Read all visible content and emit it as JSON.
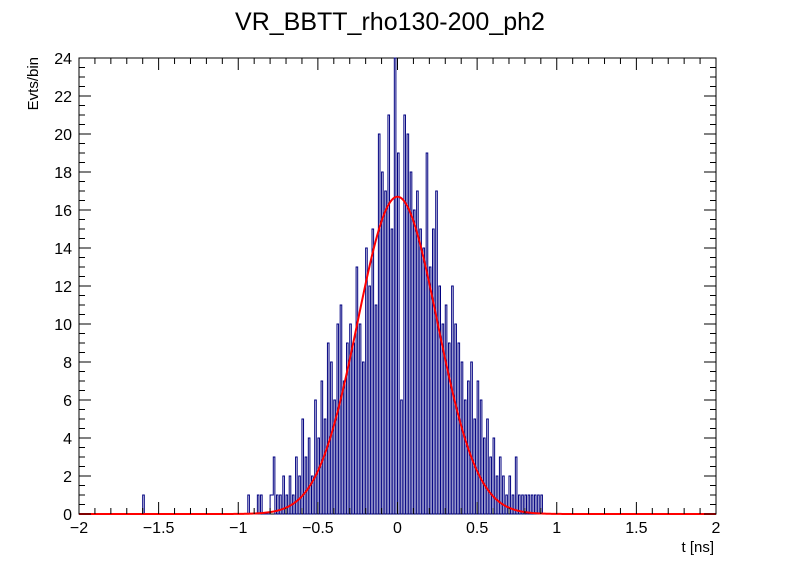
{
  "chart_data": {
    "type": "bar",
    "title": "VR_BBTT_rho130-200_ph2",
    "xlabel": "t [ns]",
    "ylabel": "Evts/bin",
    "xlim": [
      -2,
      2
    ],
    "ylim": [
      0,
      24
    ],
    "x_major_ticks": [
      -2,
      -1.5,
      -1,
      -0.5,
      0,
      0.5,
      1,
      1.5,
      2
    ],
    "x_tick_labels": [
      "−2",
      "−1.5",
      "−1",
      "−0.5",
      "0",
      "0.5",
      "1",
      "1.5",
      "2"
    ],
    "y_major_ticks": [
      0,
      2,
      4,
      6,
      8,
      10,
      12,
      14,
      16,
      18,
      20,
      22,
      24
    ],
    "y_tick_labels": [
      "0",
      "2",
      "4",
      "6",
      "8",
      "10",
      "12",
      "14",
      "16",
      "18",
      "20",
      "22",
      "24"
    ],
    "grid": false,
    "legend": "none",
    "histogram": {
      "color": "#000080",
      "bin_edges_range": [
        -2,
        2
      ],
      "nbins": 400,
      "nonzero_bins": [
        {
          "x": -1.6,
          "y": 1
        },
        {
          "x": -0.94,
          "y": 1
        },
        {
          "x": -0.88,
          "y": 1
        },
        {
          "x": -0.86,
          "y": 1
        },
        {
          "x": -0.8,
          "y": 1
        },
        {
          "x": -0.79,
          "y": 1
        },
        {
          "x": -0.78,
          "y": 3
        },
        {
          "x": -0.76,
          "y": 1
        },
        {
          "x": -0.74,
          "y": 1
        },
        {
          "x": -0.72,
          "y": 2
        },
        {
          "x": -0.7,
          "y": 1
        },
        {
          "x": -0.68,
          "y": 2
        },
        {
          "x": -0.66,
          "y": 1
        },
        {
          "x": -0.64,
          "y": 3
        },
        {
          "x": -0.62,
          "y": 2
        },
        {
          "x": -0.6,
          "y": 5
        },
        {
          "x": -0.58,
          "y": 3
        },
        {
          "x": -0.56,
          "y": 4
        },
        {
          "x": -0.54,
          "y": 2
        },
        {
          "x": -0.52,
          "y": 6
        },
        {
          "x": -0.5,
          "y": 4
        },
        {
          "x": -0.48,
          "y": 7
        },
        {
          "x": -0.46,
          "y": 5
        },
        {
          "x": -0.44,
          "y": 9
        },
        {
          "x": -0.42,
          "y": 8
        },
        {
          "x": -0.4,
          "y": 6
        },
        {
          "x": -0.38,
          "y": 10
        },
        {
          "x": -0.36,
          "y": 11
        },
        {
          "x": -0.34,
          "y": 7
        },
        {
          "x": -0.32,
          "y": 9
        },
        {
          "x": -0.3,
          "y": 10
        },
        {
          "x": -0.28,
          "y": 9
        },
        {
          "x": -0.26,
          "y": 13
        },
        {
          "x": -0.24,
          "y": 10
        },
        {
          "x": -0.22,
          "y": 8
        },
        {
          "x": -0.2,
          "y": 14
        },
        {
          "x": -0.18,
          "y": 12
        },
        {
          "x": -0.16,
          "y": 15
        },
        {
          "x": -0.14,
          "y": 11
        },
        {
          "x": -0.12,
          "y": 20
        },
        {
          "x": -0.1,
          "y": 18
        },
        {
          "x": -0.08,
          "y": 17
        },
        {
          "x": -0.06,
          "y": 21
        },
        {
          "x": -0.04,
          "y": 15
        },
        {
          "x": -0.02,
          "y": 24
        },
        {
          "x": 0.0,
          "y": 19
        },
        {
          "x": 0.02,
          "y": 6
        },
        {
          "x": 0.04,
          "y": 21
        },
        {
          "x": 0.06,
          "y": 20
        },
        {
          "x": 0.08,
          "y": 18
        },
        {
          "x": 0.1,
          "y": 16
        },
        {
          "x": 0.12,
          "y": 17
        },
        {
          "x": 0.14,
          "y": 15
        },
        {
          "x": 0.16,
          "y": 14
        },
        {
          "x": 0.18,
          "y": 19
        },
        {
          "x": 0.2,
          "y": 13
        },
        {
          "x": 0.22,
          "y": 15
        },
        {
          "x": 0.24,
          "y": 17
        },
        {
          "x": 0.26,
          "y": 12
        },
        {
          "x": 0.28,
          "y": 10
        },
        {
          "x": 0.3,
          "y": 11
        },
        {
          "x": 0.32,
          "y": 9
        },
        {
          "x": 0.34,
          "y": 12
        },
        {
          "x": 0.36,
          "y": 10
        },
        {
          "x": 0.38,
          "y": 9
        },
        {
          "x": 0.4,
          "y": 8
        },
        {
          "x": 0.42,
          "y": 6
        },
        {
          "x": 0.44,
          "y": 7
        },
        {
          "x": 0.46,
          "y": 8
        },
        {
          "x": 0.48,
          "y": 5
        },
        {
          "x": 0.5,
          "y": 7
        },
        {
          "x": 0.52,
          "y": 6
        },
        {
          "x": 0.54,
          "y": 4
        },
        {
          "x": 0.56,
          "y": 5
        },
        {
          "x": 0.58,
          "y": 3
        },
        {
          "x": 0.6,
          "y": 4
        },
        {
          "x": 0.62,
          "y": 2
        },
        {
          "x": 0.64,
          "y": 3
        },
        {
          "x": 0.66,
          "y": 2
        },
        {
          "x": 0.68,
          "y": 1
        },
        {
          "x": 0.7,
          "y": 2
        },
        {
          "x": 0.72,
          "y": 1
        },
        {
          "x": 0.74,
          "y": 3
        },
        {
          "x": 0.76,
          "y": 1
        },
        {
          "x": 0.78,
          "y": 1
        },
        {
          "x": 0.8,
          "y": 1
        },
        {
          "x": 0.82,
          "y": 1
        },
        {
          "x": 0.84,
          "y": 1
        },
        {
          "x": 0.86,
          "y": 1
        },
        {
          "x": 0.88,
          "y": 1
        },
        {
          "x": 0.9,
          "y": 1
        }
      ]
    },
    "fit": {
      "type": "gaussian",
      "color": "#ff0000",
      "amplitude": 16.7,
      "mean": 0.0,
      "sigma": 0.25
    }
  }
}
